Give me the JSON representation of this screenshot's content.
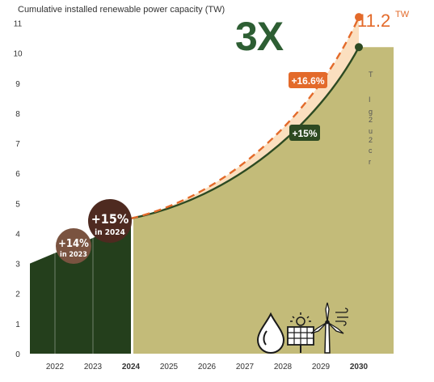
{
  "chart_data": {
    "type": "area",
    "title": "Cumulative installed renewable power capacity (TW)",
    "x": [
      "2022",
      "2023",
      "2024",
      "2025",
      "2026",
      "2027",
      "2028",
      "2029",
      "2030"
    ],
    "bold_ticks": [
      "2024",
      "2030"
    ],
    "ylim": [
      0,
      11.5
    ],
    "yticks": [
      0,
      1,
      2,
      3,
      4,
      5,
      6,
      7,
      8,
      9,
      10,
      11
    ],
    "historical": {
      "years": [
        2021.35,
        2022,
        2023,
        2024
      ],
      "values": [
        3.0,
        3.35,
        3.85,
        4.45
      ]
    },
    "series": [
      {
        "name": "+15%",
        "start": 4.5,
        "end": 10.2,
        "color": "#2d4a22"
      },
      {
        "name": "+16.6%",
        "start": 4.5,
        "end": 11.2,
        "color": "#e36a2a"
      }
    ],
    "end_label": {
      "value": "11.2",
      "unit": "TW"
    },
    "annotations": [
      {
        "main": "+14%",
        "sub": "in 2023"
      },
      {
        "main": "+15%",
        "sub": "in 2024"
      }
    ],
    "headline": "3X",
    "cut_text": [
      "T",
      "I",
      "g",
      "2",
      "u",
      "2",
      "c",
      "r"
    ]
  },
  "icons": [
    "water-drop-icon",
    "solar-panel-icon",
    "wind-turbine-icon"
  ],
  "colors": {
    "historical": "#243f1c",
    "projection_fill": "#c3bb79",
    "gap_fill": "#fbdfbf",
    "line_15": "#2d4a22",
    "line_166": "#e36a2a",
    "headline": "#2d5e33",
    "circle_2023": "#7a5340",
    "circle_2024": "#4e2a20"
  }
}
